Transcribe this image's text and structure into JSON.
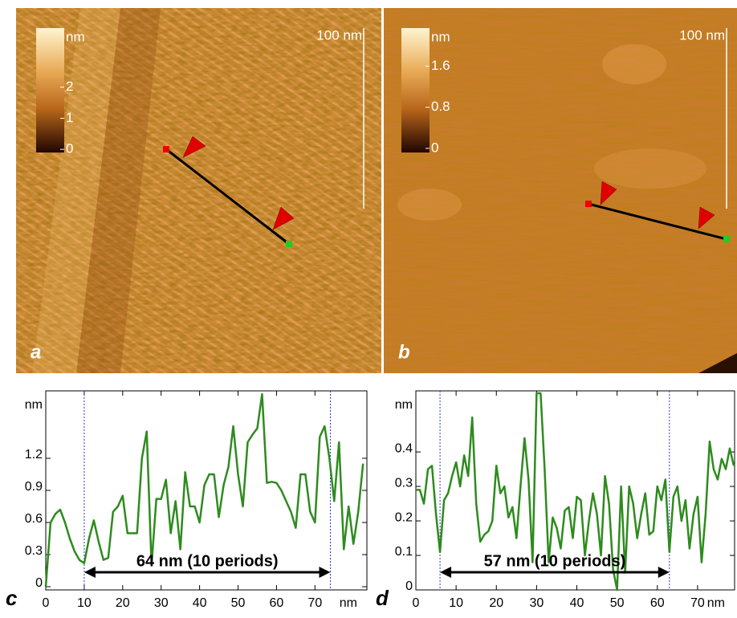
{
  "images": [
    {
      "label": "a",
      "scale_bar": "100 nm",
      "colorbar": {
        "unit": "nm",
        "lim": [
          -0.1,
          3.9
        ],
        "ticks": [
          0,
          1,
          2
        ]
      }
    },
    {
      "label": "b",
      "scale_bar": "100 nm",
      "colorbar": {
        "unit": "nm",
        "lim": [
          -0.08,
          2.34
        ],
        "ticks": [
          0,
          0.8,
          1.6
        ]
      }
    }
  ],
  "chart_data": [
    {
      "type": "line",
      "label": "c",
      "color": "#2e8b1e",
      "x_label": "nm",
      "y_label": "nm",
      "x": [
        0,
        1.25,
        2.5,
        3.75,
        5,
        6.25,
        7.5,
        8.75,
        10,
        11.25,
        12.5,
        13.75,
        15,
        16.25,
        17.5,
        18.75,
        20,
        21.25,
        22.5,
        23.75,
        25,
        26.25,
        27.5,
        28.75,
        30,
        31.25,
        32.5,
        33.75,
        35,
        36.25,
        37.5,
        38.75,
        40,
        41.25,
        42.5,
        43.75,
        45,
        46.25,
        47.5,
        48.75,
        50,
        51.25,
        52.5,
        53.75,
        55,
        56.25,
        57.5,
        58.75,
        60,
        61.25,
        62.5,
        63.75,
        65,
        66.25,
        67.5,
        68.75,
        70,
        71.25,
        72.5,
        73.75,
        75,
        76.25,
        77.5,
        78.75,
        80,
        81.25,
        82.5
      ],
      "values": [
        0.0,
        0.6,
        0.68,
        0.72,
        0.6,
        0.45,
        0.33,
        0.25,
        0.22,
        0.45,
        0.62,
        0.42,
        0.25,
        0.27,
        0.7,
        0.75,
        0.85,
        0.5,
        0.5,
        0.5,
        1.2,
        1.45,
        0.2,
        0.82,
        0.82,
        1.0,
        0.5,
        0.8,
        0.35,
        1.07,
        0.75,
        0.75,
        0.6,
        0.95,
        1.05,
        1.05,
        0.65,
        0.95,
        1.12,
        1.5,
        1.05,
        0.75,
        1.35,
        1.42,
        1.48,
        1.8,
        0.97,
        0.98,
        0.97,
        0.9,
        0.8,
        0.7,
        0.55,
        1.05,
        1.05,
        0.7,
        0.6,
        1.4,
        1.5,
        1.2,
        0.8,
        1.35,
        0.35,
        0.75,
        0.4,
        0.7,
        1.15
      ],
      "xlim": [
        0,
        83.5
      ],
      "ylim": [
        -0.03,
        1.83
      ],
      "xticks": [
        0,
        10,
        20,
        30,
        40,
        50,
        60,
        70
      ],
      "yticks": [
        0,
        0.3,
        0.6,
        0.9,
        1.2
      ],
      "markers": [
        10,
        74
      ],
      "annotation": "64 nm (10 periods)"
    },
    {
      "type": "line",
      "label": "d",
      "color": "#2e8b1e",
      "x_label": "nm",
      "y_label": "nm",
      "x": [
        0,
        1,
        2,
        3,
        4,
        5,
        6,
        7,
        8,
        9,
        10,
        11,
        12,
        13,
        14,
        15,
        16,
        17,
        18,
        19,
        20,
        21,
        22,
        23,
        24,
        25,
        26,
        27,
        28,
        29,
        30,
        31,
        32,
        33,
        34,
        35,
        36,
        37,
        38,
        39,
        40,
        41,
        42,
        43,
        44,
        45,
        46,
        47,
        48,
        49,
        50,
        51,
        52,
        53,
        54,
        55,
        56,
        57,
        58,
        59,
        60,
        61,
        62,
        63,
        64,
        65,
        66,
        67,
        68,
        69,
        70,
        71,
        72,
        73,
        74,
        75,
        76,
        77,
        78,
        79
      ],
      "values": [
        0.29,
        0.29,
        0.25,
        0.35,
        0.36,
        0.22,
        0.11,
        0.26,
        0.28,
        0.33,
        0.37,
        0.3,
        0.39,
        0.33,
        0.5,
        0.25,
        0.14,
        0.16,
        0.17,
        0.2,
        0.36,
        0.28,
        0.3,
        0.21,
        0.24,
        0.15,
        0.3,
        0.44,
        0.32,
        0.08,
        0.57,
        0.57,
        0.35,
        0.08,
        0.21,
        0.18,
        0.12,
        0.23,
        0.24,
        0.15,
        0.27,
        0.26,
        0.1,
        0.2,
        0.28,
        0.22,
        0.1,
        0.33,
        0.25,
        0.06,
        0.0,
        0.3,
        0.05,
        0.3,
        0.25,
        0.15,
        0.22,
        0.28,
        0.16,
        0.17,
        0.3,
        0.26,
        0.32,
        0.11,
        0.27,
        0.3,
        0.2,
        0.26,
        0.12,
        0.22,
        0.27,
        0.08,
        0.22,
        0.43,
        0.35,
        0.32,
        0.38,
        0.35,
        0.41,
        0.36
      ],
      "xlim": [
        0,
        79.2
      ],
      "ylim": [
        0,
        0.577
      ],
      "xticks": [
        0,
        10,
        20,
        30,
        40,
        50,
        60,
        70
      ],
      "yticks": [
        0,
        0.1,
        0.2,
        0.3,
        0.4
      ],
      "markers": [
        6,
        63
      ],
      "annotation": "57 nm (10 periods)"
    }
  ]
}
